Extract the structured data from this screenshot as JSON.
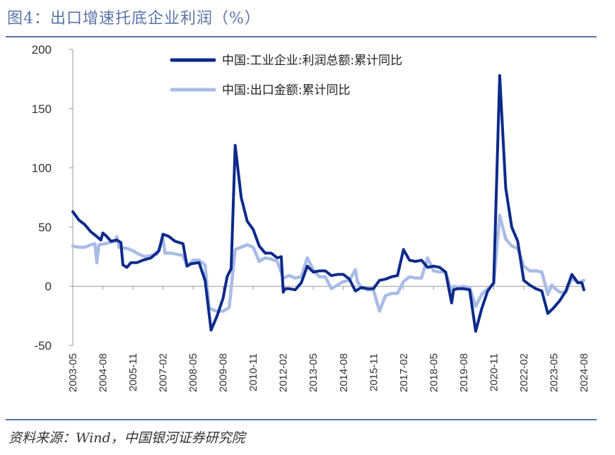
{
  "header": {
    "title": "图4：出口增速托底企业利润（%）"
  },
  "footer": {
    "source": "资料来源：Wind，中国银河证券研究院"
  },
  "colors": {
    "profit": "#0d2a8a",
    "export": "#a9bce6",
    "axis": "#999999",
    "rule": "#5a73a8"
  },
  "chart_data": {
    "type": "line",
    "title": "出口增速托底企业利润（%）",
    "ylim": [
      -50,
      200
    ],
    "yticks": [
      -50,
      0,
      50,
      100,
      150,
      200
    ],
    "xlim": [
      "2003-05",
      "2024-08"
    ],
    "xticks": [
      "2003-05",
      "2004-08",
      "2005-11",
      "2007-02",
      "2008-05",
      "2009-08",
      "2010-11",
      "2012-02",
      "2013-05",
      "2014-08",
      "2015-11",
      "2017-02",
      "2018-05",
      "2019-08",
      "2020-11",
      "2022-02",
      "2023-05",
      "2024-08"
    ],
    "legend_position": "top",
    "series": [
      {
        "name": "中国:工业企业:利润总额:累计同比",
        "color": "#0d2a8a",
        "points": [
          [
            "2003-05",
            63
          ],
          [
            "2003-08",
            56
          ],
          [
            "2003-11",
            52
          ],
          [
            "2004-02",
            46
          ],
          [
            "2004-05",
            42
          ],
          [
            "2004-07",
            39
          ],
          [
            "2004-08",
            45
          ],
          [
            "2004-10",
            42
          ],
          [
            "2004-12",
            38
          ],
          [
            "2005-03",
            39
          ],
          [
            "2005-05",
            37
          ],
          [
            "2005-06",
            18
          ],
          [
            "2005-08",
            16
          ],
          [
            "2005-10",
            20
          ],
          [
            "2006-01",
            20
          ],
          [
            "2006-04",
            22
          ],
          [
            "2006-08",
            24
          ],
          [
            "2006-12",
            30
          ],
          [
            "2007-02",
            44
          ],
          [
            "2007-05",
            42
          ],
          [
            "2007-08",
            38
          ],
          [
            "2007-12",
            36
          ],
          [
            "2008-02",
            17
          ],
          [
            "2008-04",
            19
          ],
          [
            "2008-08",
            20
          ],
          [
            "2008-11",
            5
          ],
          [
            "2009-02",
            -37
          ],
          [
            "2009-05",
            -25
          ],
          [
            "2009-08",
            -10
          ],
          [
            "2009-10",
            8
          ],
          [
            "2009-12",
            15
          ],
          [
            "2010-02",
            119
          ],
          [
            "2010-05",
            75
          ],
          [
            "2010-08",
            55
          ],
          [
            "2010-11",
            48
          ],
          [
            "2011-02",
            34
          ],
          [
            "2011-05",
            28
          ],
          [
            "2011-08",
            28
          ],
          [
            "2011-11",
            24
          ],
          [
            "2012-01",
            25
          ],
          [
            "2012-02",
            -5
          ],
          [
            "2012-03",
            -2
          ],
          [
            "2012-05",
            -2
          ],
          [
            "2012-08",
            -3
          ],
          [
            "2012-11",
            3
          ],
          [
            "2013-02",
            17
          ],
          [
            "2013-05",
            12
          ],
          [
            "2013-08",
            13
          ],
          [
            "2013-11",
            13
          ],
          [
            "2014-02",
            9
          ],
          [
            "2014-05",
            10
          ],
          [
            "2014-08",
            10
          ],
          [
            "2014-11",
            6
          ],
          [
            "2015-02",
            -4
          ],
          [
            "2015-05",
            -1
          ],
          [
            "2015-08",
            -2
          ],
          [
            "2015-11",
            -2
          ],
          [
            "2016-02",
            5
          ],
          [
            "2016-05",
            6
          ],
          [
            "2016-08",
            8
          ],
          [
            "2016-11",
            9
          ],
          [
            "2017-02",
            31
          ],
          [
            "2017-05",
            22
          ],
          [
            "2017-08",
            21
          ],
          [
            "2017-11",
            22
          ],
          [
            "2018-02",
            16
          ],
          [
            "2018-05",
            17
          ],
          [
            "2018-08",
            16
          ],
          [
            "2018-11",
            12
          ],
          [
            "2019-02",
            -14
          ],
          [
            "2019-03",
            -3
          ],
          [
            "2019-05",
            -2
          ],
          [
            "2019-08",
            -2
          ],
          [
            "2019-11",
            -3
          ],
          [
            "2020-02",
            -38
          ],
          [
            "2020-05",
            -19
          ],
          [
            "2020-08",
            -4
          ],
          [
            "2020-11",
            3
          ],
          [
            "2021-02",
            178
          ],
          [
            "2021-05",
            83
          ],
          [
            "2021-08",
            50
          ],
          [
            "2021-11",
            38
          ],
          [
            "2022-02",
            5
          ],
          [
            "2022-05",
            1
          ],
          [
            "2022-08",
            -2
          ],
          [
            "2022-11",
            -4
          ],
          [
            "2023-02",
            -23
          ],
          [
            "2023-05",
            -18
          ],
          [
            "2023-08",
            -12
          ],
          [
            "2023-11",
            -4
          ],
          [
            "2024-02",
            10
          ],
          [
            "2024-05",
            3
          ],
          [
            "2024-07",
            3
          ],
          [
            "2024-08",
            -3
          ]
        ]
      },
      {
        "name": "中国:出口金额:累计同比",
        "color": "#a9bce6",
        "points": [
          [
            "2003-05",
            34
          ],
          [
            "2003-08",
            33
          ],
          [
            "2003-11",
            33
          ],
          [
            "2004-02",
            35
          ],
          [
            "2004-04",
            36
          ],
          [
            "2004-05",
            20
          ],
          [
            "2004-06",
            35
          ],
          [
            "2004-09",
            36
          ],
          [
            "2005-02",
            38
          ],
          [
            "2005-03",
            42
          ],
          [
            "2005-04",
            33
          ],
          [
            "2005-08",
            32
          ],
          [
            "2005-11",
            30
          ],
          [
            "2006-02",
            27
          ],
          [
            "2006-05",
            25
          ],
          [
            "2006-08",
            26
          ],
          [
            "2006-11",
            27
          ],
          [
            "2007-02",
            40
          ],
          [
            "2007-03",
            28
          ],
          [
            "2007-06",
            28
          ],
          [
            "2007-09",
            27
          ],
          [
            "2007-12",
            26
          ],
          [
            "2008-02",
            17
          ],
          [
            "2008-05",
            22
          ],
          [
            "2008-08",
            22
          ],
          [
            "2008-11",
            18
          ],
          [
            "2009-01",
            -18
          ],
          [
            "2009-03",
            -20
          ],
          [
            "2009-05",
            -21
          ],
          [
            "2009-08",
            -21
          ],
          [
            "2009-11",
            -18
          ],
          [
            "2010-02",
            31
          ],
          [
            "2010-05",
            33
          ],
          [
            "2010-08",
            35
          ],
          [
            "2010-11",
            33
          ],
          [
            "2011-02",
            21
          ],
          [
            "2011-05",
            24
          ],
          [
            "2011-08",
            23
          ],
          [
            "2011-11",
            21
          ],
          [
            "2012-02",
            7
          ],
          [
            "2012-05",
            9
          ],
          [
            "2012-08",
            7
          ],
          [
            "2012-11",
            8
          ],
          [
            "2013-02",
            24
          ],
          [
            "2013-05",
            14
          ],
          [
            "2013-08",
            8
          ],
          [
            "2013-11",
            8
          ],
          [
            "2014-02",
            -2
          ],
          [
            "2014-05",
            1
          ],
          [
            "2014-08",
            4
          ],
          [
            "2014-11",
            5
          ],
          [
            "2015-02",
            14
          ],
          [
            "2015-03",
            4
          ],
          [
            "2015-05",
            -1
          ],
          [
            "2015-08",
            -3
          ],
          [
            "2015-11",
            -3
          ],
          [
            "2016-02",
            -21
          ],
          [
            "2016-05",
            -8
          ],
          [
            "2016-08",
            -6
          ],
          [
            "2016-11",
            -6
          ],
          [
            "2017-02",
            4
          ],
          [
            "2017-05",
            8
          ],
          [
            "2017-08",
            7
          ],
          [
            "2017-11",
            7
          ],
          [
            "2018-02",
            24
          ],
          [
            "2018-05",
            13
          ],
          [
            "2018-08",
            12
          ],
          [
            "2018-11",
            12
          ],
          [
            "2019-02",
            -4
          ],
          [
            "2019-03",
            0
          ],
          [
            "2019-05",
            -1
          ],
          [
            "2019-08",
            0
          ],
          [
            "2019-11",
            -1
          ],
          [
            "2020-02",
            -17
          ],
          [
            "2020-05",
            -7
          ],
          [
            "2020-08",
            -2
          ],
          [
            "2020-11",
            2
          ],
          [
            "2021-02",
            60
          ],
          [
            "2021-05",
            40
          ],
          [
            "2021-08",
            34
          ],
          [
            "2021-11",
            32
          ],
          [
            "2022-02",
            17
          ],
          [
            "2022-05",
            13
          ],
          [
            "2022-08",
            13
          ],
          [
            "2022-11",
            12
          ],
          [
            "2023-02",
            -7
          ],
          [
            "2023-04",
            1
          ],
          [
            "2023-05",
            -1
          ],
          [
            "2023-08",
            -5
          ],
          [
            "2023-11",
            -5
          ],
          [
            "2024-02",
            7
          ],
          [
            "2024-05",
            3
          ],
          [
            "2024-08",
            5
          ]
        ]
      }
    ]
  }
}
